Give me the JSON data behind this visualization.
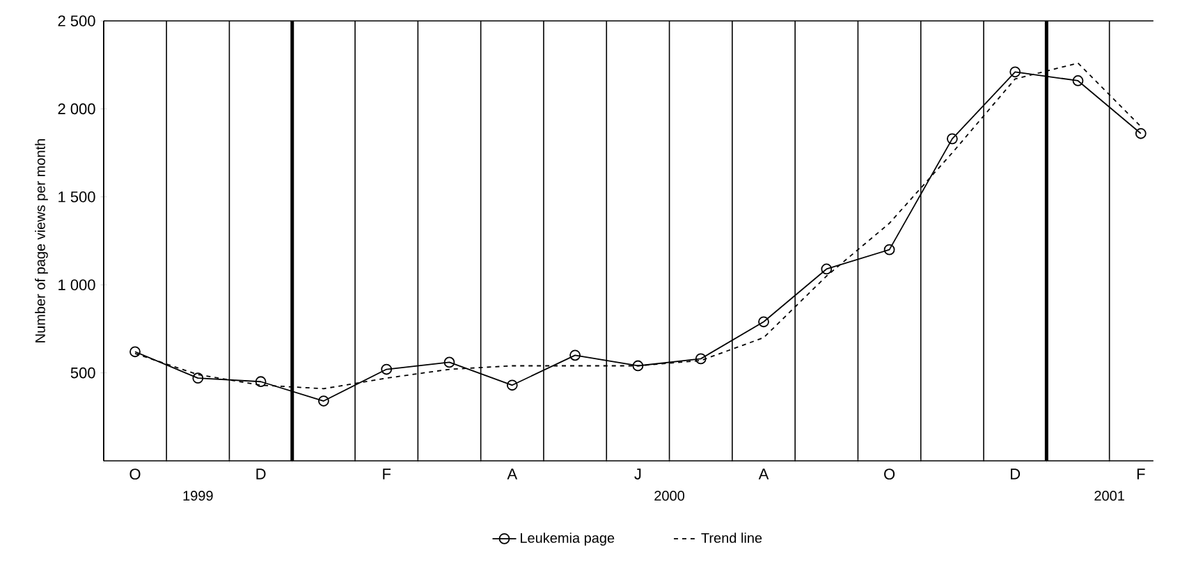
{
  "chart_data": {
    "type": "line",
    "ylabel": "Number of page views per month",
    "categories": [
      "O",
      null,
      "D",
      null,
      "F",
      null,
      "A",
      null,
      "J",
      null,
      "A",
      null,
      "O",
      null,
      "D",
      null,
      "F"
    ],
    "series": [
      {
        "name": "Leukemia page",
        "color": "#000000",
        "marker": "circle",
        "line_style": "solid",
        "values": [
          620,
          470,
          450,
          340,
          520,
          560,
          430,
          600,
          540,
          580,
          790,
          1090,
          1200,
          1830,
          2210,
          2160,
          1860
        ]
      },
      {
        "name": "Trend line",
        "color": "#000000",
        "marker": "none",
        "line_style": "dashed",
        "values": [
          610,
          490,
          430,
          410,
          470,
          520,
          540,
          540,
          540,
          570,
          700,
          1050,
          1350,
          1750,
          2170,
          2260,
          1900
        ]
      }
    ],
    "ylim": [
      0,
      2500
    ],
    "yticks": [
      500,
      {
        "value": 1000,
        "label": "1 000"
      },
      {
        "value": 1500,
        "label": "1 500"
      },
      {
        "value": 2000,
        "label": "2 000"
      },
      {
        "value": 2500,
        "label": "2 500"
      }
    ],
    "annotations": [
      "1999",
      "2000",
      "2001"
    ],
    "grid": "x",
    "legend": "bottom"
  }
}
